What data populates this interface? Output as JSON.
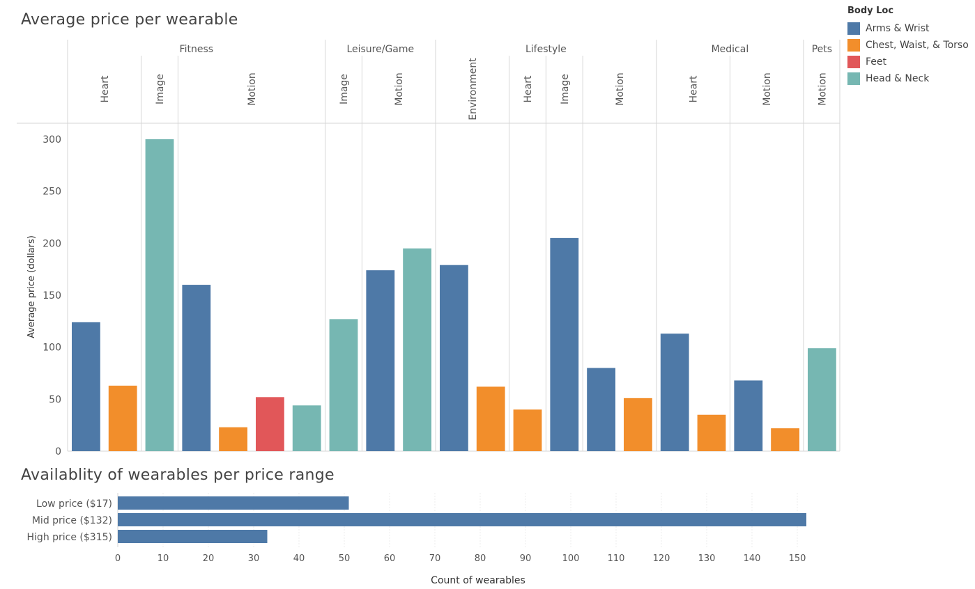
{
  "colors": {
    "Arms & Wrist": "#4e79a7",
    "Chest, Waist, & Torso": "#f28e2b",
    "Feet": "#e15759",
    "Head & Neck": "#76b7b2"
  },
  "chart_data": [
    {
      "type": "bar",
      "title": "Average price per wearable",
      "ylabel": "Average price (dollars)",
      "ylim": [
        0,
        310
      ],
      "yticks": [
        0,
        50,
        100,
        150,
        200,
        250,
        300
      ],
      "legend": {
        "title": "Body Loc",
        "placement": "top-right",
        "entries": [
          "Arms & Wrist",
          "Chest, Waist, & Torso",
          "Feet",
          "Head & Neck"
        ]
      },
      "groups": [
        {
          "name": "Fitness",
          "subgroups": [
            {
              "name": "Heart",
              "bars": [
                {
                  "series": "Arms & Wrist",
                  "value": 124
                },
                {
                  "series": "Chest, Waist, & Torso",
                  "value": 63
                }
              ]
            },
            {
              "name": "Image",
              "bars": [
                {
                  "series": "Head & Neck",
                  "value": 300
                }
              ]
            },
            {
              "name": "Motion",
              "bars": [
                {
                  "series": "Arms & Wrist",
                  "value": 160
                },
                {
                  "series": "Chest, Waist, & Torso",
                  "value": 23
                },
                {
                  "series": "Feet",
                  "value": 52
                },
                {
                  "series": "Head & Neck",
                  "value": 44
                }
              ]
            }
          ]
        },
        {
          "name": "Leisure/Game",
          "subgroups": [
            {
              "name": "Image",
              "bars": [
                {
                  "series": "Head & Neck",
                  "value": 127
                }
              ]
            },
            {
              "name": "Motion",
              "bars": [
                {
                  "series": "Arms & Wrist",
                  "value": 174
                },
                {
                  "series": "Head & Neck",
                  "value": 195
                }
              ]
            }
          ]
        },
        {
          "name": "Lifestyle",
          "subgroups": [
            {
              "name": "Environment",
              "bars": [
                {
                  "series": "Arms & Wrist",
                  "value": 179
                },
                {
                  "series": "Chest, Waist, & Torso",
                  "value": 62
                }
              ]
            },
            {
              "name": "Heart",
              "bars": [
                {
                  "series": "Chest, Waist, & Torso",
                  "value": 40
                }
              ]
            },
            {
              "name": "Image",
              "bars": [
                {
                  "series": "Arms & Wrist",
                  "value": 205
                }
              ]
            },
            {
              "name": "Motion",
              "bars": [
                {
                  "series": "Arms & Wrist",
                  "value": 80
                },
                {
                  "series": "Chest, Waist, & Torso",
                  "value": 51
                }
              ]
            }
          ]
        },
        {
          "name": "Medical",
          "subgroups": [
            {
              "name": "Heart",
              "bars": [
                {
                  "series": "Arms & Wrist",
                  "value": 113
                },
                {
                  "series": "Chest, Waist, & Torso",
                  "value": 35
                }
              ]
            },
            {
              "name": "Motion",
              "bars": [
                {
                  "series": "Arms & Wrist",
                  "value": 68
                },
                {
                  "series": "Chest, Waist, & Torso",
                  "value": 22
                }
              ]
            }
          ]
        },
        {
          "name": "Pets",
          "subgroups": [
            {
              "name": "Motion",
              "bars": [
                {
                  "series": "Head & Neck",
                  "value": 99
                }
              ]
            }
          ]
        }
      ]
    },
    {
      "type": "bar",
      "orientation": "horizontal",
      "title": "Availablity of wearables per price range",
      "xlabel": "Count of wearables",
      "xlim": [
        0,
        160
      ],
      "xticks": [
        0,
        10,
        20,
        30,
        40,
        50,
        60,
        70,
        80,
        90,
        100,
        110,
        120,
        130,
        140,
        150
      ],
      "categories": [
        "Low price ($17)",
        "Mid price ($132)",
        "High price ($315)"
      ],
      "values": [
        51,
        152,
        33
      ],
      "color": "#4e79a7"
    }
  ]
}
